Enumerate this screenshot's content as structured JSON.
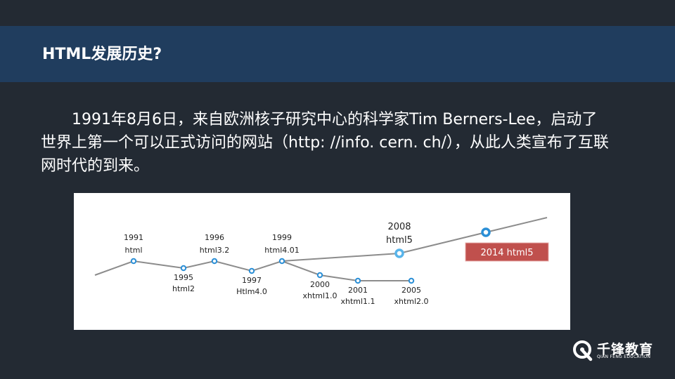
{
  "header": {
    "title": "HTML发展历史?"
  },
  "content": {
    "paragraph": "1991年8月6日，来自欧洲核子研究中心的科学家Tim Berners-Lee，启动了世界上第一个可以正式访问的网站（http: //info. cern. ch/），从此人类宣布了互联网时代的到来。"
  },
  "timeline": {
    "events": [
      {
        "year": "1991",
        "version": "html",
        "label_side": "above"
      },
      {
        "year": "1995",
        "version": "html2",
        "label_side": "below"
      },
      {
        "year": "1996",
        "version": "html3.2",
        "label_side": "above"
      },
      {
        "year": "1997",
        "version": "Htlm4.0",
        "label_side": "below"
      },
      {
        "year": "1999",
        "version": "html4.01",
        "label_side": "above"
      },
      {
        "year": "2000",
        "version": "xhtml1.0",
        "label_side": "below"
      },
      {
        "year": "2001",
        "version": "xhtml1.1",
        "label_side": "below"
      },
      {
        "year": "2005",
        "version": "xhtml2.0",
        "label_side": "below"
      },
      {
        "year": "2008",
        "version": "html5",
        "label_side": "above"
      },
      {
        "year": "2014",
        "version": "html5",
        "label_side": "callout"
      }
    ],
    "callout_text": "2014  html5",
    "colors": {
      "line": "#8c8c8c",
      "node": "#2b8fd6",
      "node_2008": "#58b4ea",
      "callout": "#c0504d"
    }
  },
  "logo": {
    "name_cn": "千锋教育",
    "name_en": "QIAN FENG EDUCATION",
    "icon": "q-logo-icon"
  }
}
